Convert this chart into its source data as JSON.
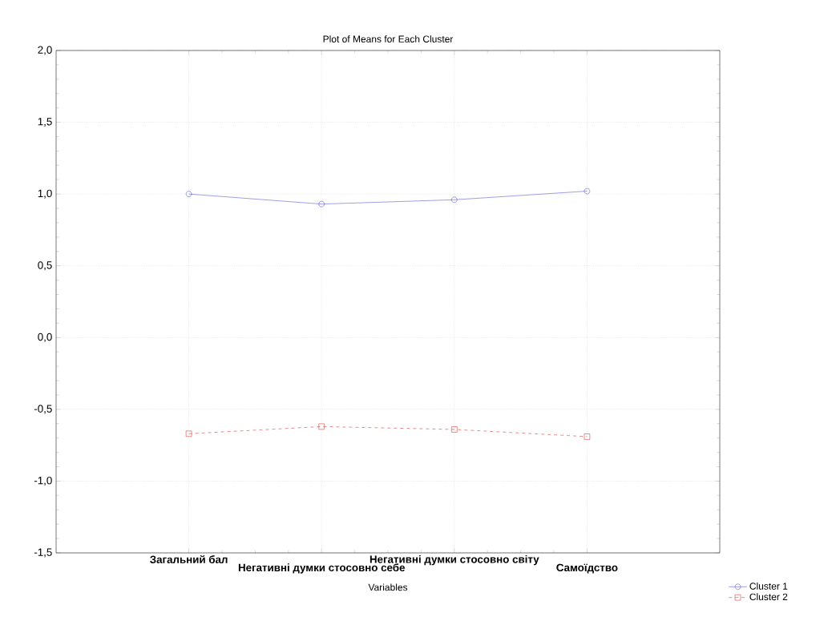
{
  "chart_data": {
    "type": "line",
    "title": "Plot of Means for Each Cluster",
    "xlabel": "Variables",
    "categories": [
      "Загальний бал",
      "Негативні думки стосовно себе",
      "Негативні думки стосовно світу",
      "Самоїдство"
    ],
    "series": [
      {
        "name": "Cluster  1",
        "color": "#4a4ad0",
        "values": [
          1.0,
          0.93,
          0.96,
          1.02
        ],
        "marker": "circle",
        "line_style": "solid"
      },
      {
        "name": "Cluster  2",
        "color": "#d42a2a",
        "values": [
          -0.67,
          -0.62,
          -0.64,
          -0.69
        ],
        "marker": "square",
        "line_style": "dashed"
      }
    ],
    "ylim": [
      -1.5,
      2.0
    ],
    "yticks": [
      {
        "value": -1.5,
        "label": "-1,5"
      },
      {
        "value": -1.0,
        "label": "-1,0"
      },
      {
        "value": -0.5,
        "label": "-0,5"
      },
      {
        "value": 0.0,
        "label": "0,0"
      },
      {
        "value": 0.5,
        "label": "0,5"
      },
      {
        "value": 1.0,
        "label": "1,0"
      },
      {
        "value": 1.5,
        "label": "1,5"
      },
      {
        "value": 2.0,
        "label": "2,0"
      }
    ],
    "grid": true,
    "legend": "bottom right"
  }
}
